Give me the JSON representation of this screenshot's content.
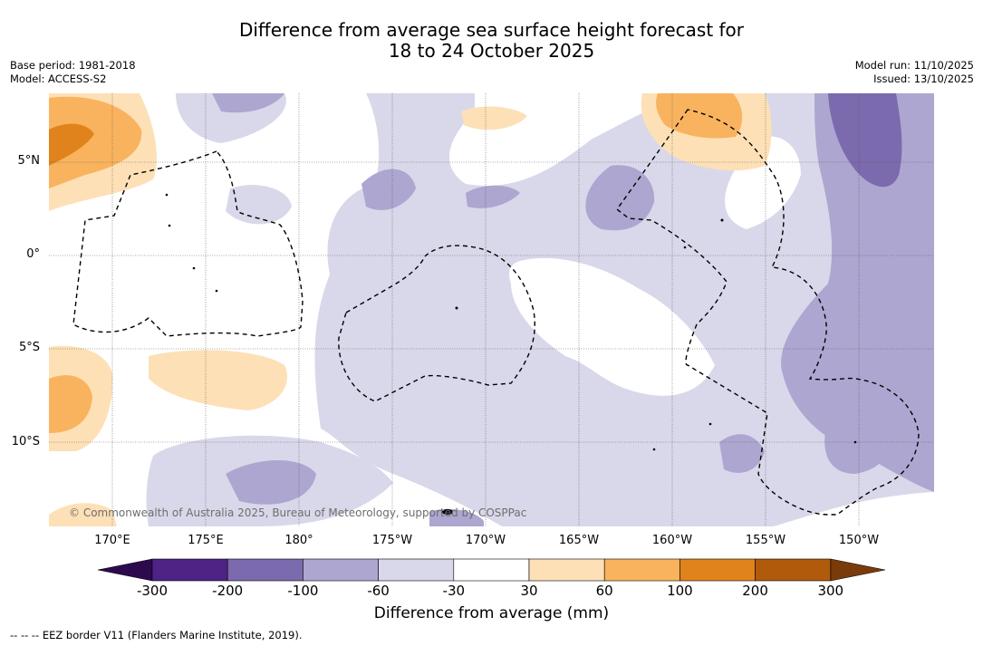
{
  "title": {
    "line1": "Difference from average sea surface height forecast for",
    "line2": "18 to 24 October 2025"
  },
  "meta": {
    "base_period": "Base period: 1981-2018",
    "model": "Model: ACCESS-S2",
    "model_run": "Model run: 11/10/2025",
    "issued": "Issued: 13/10/2025"
  },
  "map": {
    "lat_labels": [
      "5°N",
      "0°",
      "5°S",
      "10°S"
    ],
    "lon_labels": [
      "170°E",
      "175°E",
      "180°",
      "175°W",
      "170°W",
      "165°W",
      "160°W",
      "155°W",
      "150°W"
    ],
    "copyright": "© Commonwealth of Australia 2025, Bureau of Meteorology, supported by COSPPac"
  },
  "colorbar": {
    "ticks": [
      "-300",
      "-200",
      "-100",
      "-60",
      "-30",
      "30",
      "60",
      "100",
      "200",
      "300"
    ],
    "colors": [
      "#4e2386",
      "#7b6aad",
      "#ada6d0",
      "#d8d8ea",
      "#ffffff",
      "#fde0b6",
      "#f9b35e",
      "#e0831c",
      "#b05a0c"
    ],
    "under_color": "#2d0a4e",
    "over_color": "#7a3b0a",
    "label": "Difference from average (mm)"
  },
  "colors": {
    "neg_light": "#d8d8ea",
    "neg_mid": "#ada6d0",
    "neg_dark": "#7b6aad",
    "pos_light": "#fde0b6",
    "pos_mid": "#f9b35e",
    "pos_dark": "#e0831c"
  },
  "legend": {
    "eez": "--  --  -- EEZ border V11 (Flanders Marine Institute, 2019)."
  }
}
